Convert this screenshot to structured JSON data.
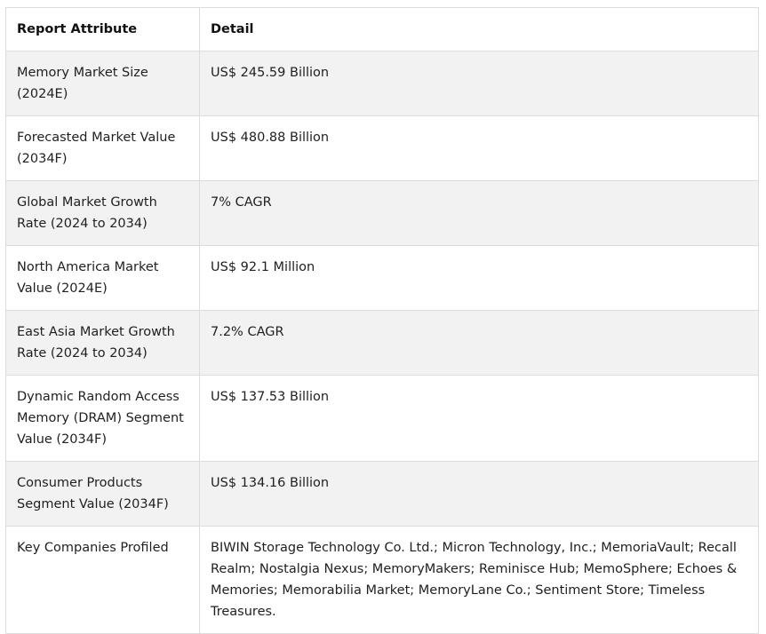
{
  "table": {
    "headers": [
      "Report Attribute",
      "Detail"
    ],
    "rows": [
      {
        "attribute": "Memory Market Size (2024E)",
        "detail": "US$ 245.59 Billion"
      },
      {
        "attribute": "Forecasted Market Value (2034F)",
        "detail": "US$ 480.88 Billion"
      },
      {
        "attribute": "Global Market Growth Rate (2024 to 2034)",
        "detail": "7% CAGR"
      },
      {
        "attribute": "North America Market Value (2024E)",
        "detail": "US$ 92.1 Million"
      },
      {
        "attribute": "East Asia Market Growth Rate (2024 to 2034)",
        "detail": "7.2% CAGR"
      },
      {
        "attribute": "Dynamic Random Access Memory (DRAM) Segment Value (2034F)",
        "detail": "US$ 137.53 Billion"
      },
      {
        "attribute": "Consumer Products Segment Value (2034F)",
        "detail": "US$ 134.16 Billion"
      },
      {
        "attribute": "Key Companies Profiled",
        "detail": "BIWIN Storage Technology Co. Ltd.; Micron Technology, Inc.; MemoriaVault; Recall Realm; Nostalgia Nexus; MemoryMakers; Reminisce Hub; MemoSphere; Echoes & Memories; Memorabilia Market; MemoryLane Co.; Sentiment Store; Timeless Treasures."
      }
    ]
  }
}
